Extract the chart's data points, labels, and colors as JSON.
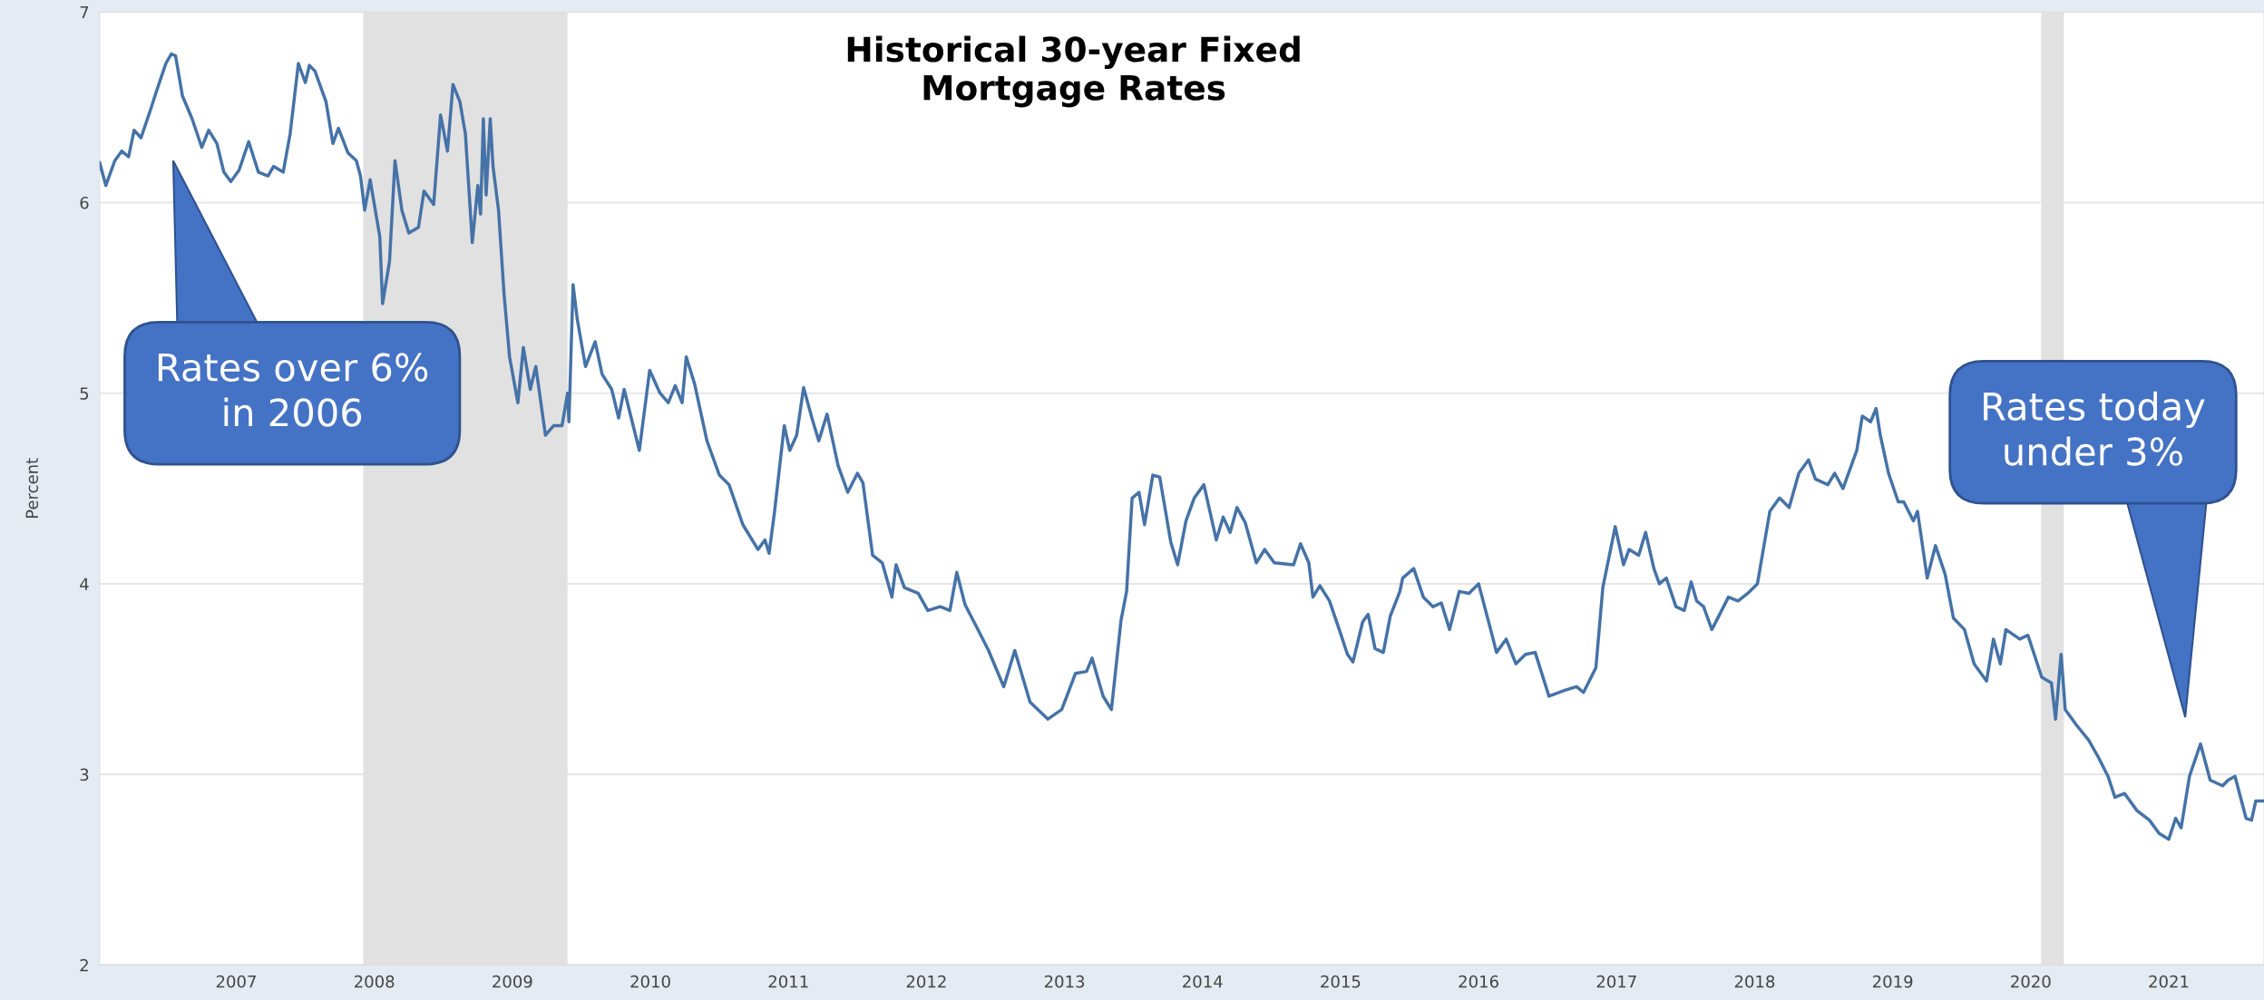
{
  "chart_data": {
    "type": "line",
    "title": "Historical 30-year Fixed\nMortgage Rates",
    "ylabel": "Percent",
    "x": [
      2006.01,
      2006.055,
      2006.12,
      2006.17,
      2006.22,
      2006.26,
      2006.31,
      2006.38,
      2006.42,
      2006.49,
      2006.53,
      2006.56,
      2006.61,
      2006.68,
      2006.75,
      2006.8,
      2006.86,
      2006.91,
      2006.96,
      2007.02,
      2007.09,
      2007.16,
      2007.23,
      2007.27,
      2007.34,
      2007.39,
      2007.45,
      2007.5,
      2007.53,
      2007.57,
      2007.65,
      2007.7,
      2007.74,
      2007.81,
      2007.87,
      2007.9,
      2007.93,
      2007.97,
      2008.04,
      2008.06,
      2008.11,
      2008.15,
      2008.2,
      2008.25,
      2008.32,
      2008.36,
      2008.43,
      2008.48,
      2008.53,
      2008.57,
      2008.62,
      2008.66,
      2008.71,
      2008.75,
      2008.77,
      2008.79,
      2008.81,
      2008.84,
      2008.86,
      2008.9,
      2008.94,
      2008.98,
      2009.04,
      2009.08,
      2009.13,
      2009.17,
      2009.24,
      2009.3,
      2009.36,
      2009.4,
      2009.41,
      2009.44,
      2009.47,
      2009.53,
      2009.6,
      2009.65,
      2009.72,
      2009.77,
      2009.81,
      2009.92,
      2009.995,
      2010.07,
      2010.13,
      2010.18,
      2010.23,
      2010.26,
      2010.32,
      2010.41,
      2010.5,
      2010.57,
      2010.67,
      2010.78,
      2010.83,
      2010.86,
      2010.9,
      2010.97,
      2011.01,
      2011.06,
      2011.11,
      2011.17,
      2011.22,
      2011.28,
      2011.36,
      2011.43,
      2011.5,
      2011.54,
      2011.61,
      2011.68,
      2011.75,
      2011.78,
      2011.84,
      2011.94,
      2012.01,
      2012.1,
      2012.17,
      2012.22,
      2012.28,
      2012.38,
      2012.45,
      2012.56,
      2012.64,
      2012.75,
      2012.88,
      2012.98,
      2013.08,
      2013.16,
      2013.2,
      2013.28,
      2013.34,
      2013.41,
      2013.45,
      2013.49,
      2013.54,
      2013.58,
      2013.64,
      2013.69,
      2013.77,
      2013.82,
      2013.88,
      2013.94,
      2014.01,
      2014.1,
      2014.15,
      2014.2,
      2014.25,
      2014.31,
      2014.39,
      2014.45,
      2014.52,
      2014.66,
      2014.71,
      2014.77,
      2014.8,
      2014.85,
      2014.92,
      2015.0,
      2015.05,
      2015.09,
      2015.16,
      2015.2,
      2015.25,
      2015.31,
      2015.36,
      2015.43,
      2015.45,
      2015.53,
      2015.6,
      2015.67,
      2015.73,
      2015.79,
      2015.86,
      2015.93,
      2016.0,
      2016.08,
      2016.13,
      2016.2,
      2016.27,
      2016.34,
      2016.41,
      2016.51,
      2016.62,
      2016.71,
      2016.76,
      2016.85,
      2016.9,
      2016.99,
      2017.05,
      2017.09,
      2017.16,
      2017.21,
      2017.27,
      2017.31,
      2017.36,
      2017.43,
      2017.49,
      2017.54,
      2017.58,
      2017.63,
      2017.69,
      2017.74,
      2017.81,
      2017.88,
      2017.95,
      2018.02,
      2018.11,
      2018.18,
      2018.25,
      2018.32,
      2018.39,
      2018.44,
      2018.53,
      2018.58,
      2018.64,
      2018.74,
      2018.78,
      2018.84,
      2018.88,
      2018.91,
      2018.97,
      2019.04,
      2019.08,
      2019.15,
      2019.18,
      2019.25,
      2019.31,
      2019.38,
      2019.44,
      2019.52,
      2019.59,
      2019.68,
      2019.73,
      2019.78,
      2019.82,
      2019.92,
      2019.98,
      2020.08,
      2020.15,
      2020.18,
      2020.22,
      2020.25,
      2020.33,
      2020.42,
      2020.49,
      2020.56,
      2020.61,
      2020.68,
      2020.77,
      2020.86,
      2020.93,
      2021.0,
      2021.05,
      2021.09,
      2021.15,
      2021.23,
      2021.3,
      2021.39,
      2021.43,
      2021.48,
      2021.56,
      2021.6,
      2021.63,
      2021.69
    ],
    "series": [
      {
        "color": "#4572a7",
        "values": [
          6.21,
          6.09,
          6.22,
          6.27,
          6.24,
          6.38,
          6.34,
          6.49,
          6.58,
          6.73,
          6.78,
          6.77,
          6.56,
          6.44,
          6.29,
          6.38,
          6.31,
          6.16,
          6.11,
          6.17,
          6.32,
          6.16,
          6.14,
          6.19,
          6.16,
          6.36,
          6.73,
          6.63,
          6.72,
          6.69,
          6.53,
          6.31,
          6.39,
          6.26,
          6.22,
          6.14,
          5.96,
          6.12,
          5.82,
          5.47,
          5.69,
          6.22,
          5.96,
          5.84,
          5.87,
          6.06,
          5.99,
          6.46,
          6.27,
          6.62,
          6.53,
          6.36,
          5.79,
          6.09,
          5.94,
          6.44,
          6.04,
          6.44,
          6.19,
          5.96,
          5.52,
          5.19,
          4.95,
          5.24,
          5.02,
          5.14,
          4.78,
          4.83,
          4.83,
          5.0,
          4.85,
          5.57,
          5.39,
          5.14,
          5.27,
          5.1,
          5.02,
          4.87,
          5.02,
          4.7,
          5.12,
          5.0,
          4.95,
          5.04,
          4.95,
          5.19,
          5.05,
          4.75,
          4.57,
          4.52,
          4.31,
          4.18,
          4.23,
          4.16,
          4.38,
          4.83,
          4.7,
          4.78,
          5.03,
          4.87,
          4.75,
          4.89,
          4.62,
          4.48,
          4.58,
          4.53,
          4.15,
          4.11,
          3.93,
          4.1,
          3.98,
          3.95,
          3.86,
          3.88,
          3.86,
          4.06,
          3.89,
          3.75,
          3.65,
          3.46,
          3.65,
          3.38,
          3.29,
          3.34,
          3.53,
          3.54,
          3.61,
          3.41,
          3.34,
          3.81,
          3.96,
          4.45,
          4.48,
          4.31,
          4.57,
          4.56,
          4.22,
          4.1,
          4.33,
          4.45,
          4.52,
          4.23,
          4.35,
          4.27,
          4.4,
          4.32,
          4.11,
          4.18,
          4.11,
          4.1,
          4.21,
          4.11,
          3.93,
          3.99,
          3.91,
          3.74,
          3.63,
          3.59,
          3.8,
          3.84,
          3.66,
          3.64,
          3.83,
          3.96,
          4.03,
          4.08,
          3.93,
          3.88,
          3.9,
          3.76,
          3.96,
          3.95,
          4.0,
          3.78,
          3.64,
          3.71,
          3.58,
          3.63,
          3.64,
          3.41,
          3.44,
          3.46,
          3.43,
          3.56,
          3.98,
          4.3,
          4.1,
          4.18,
          4.15,
          4.27,
          4.08,
          4.0,
          4.03,
          3.88,
          3.86,
          4.01,
          3.91,
          3.88,
          3.76,
          3.83,
          3.93,
          3.91,
          3.95,
          4.0,
          4.38,
          4.45,
          4.4,
          4.58,
          4.65,
          4.55,
          4.52,
          4.58,
          4.5,
          4.7,
          4.88,
          4.85,
          4.92,
          4.78,
          4.58,
          4.43,
          4.43,
          4.33,
          4.38,
          4.03,
          4.2,
          4.05,
          3.82,
          3.76,
          3.58,
          3.49,
          3.71,
          3.58,
          3.76,
          3.71,
          3.73,
          3.51,
          3.48,
          3.29,
          3.63,
          3.34,
          3.26,
          3.18,
          3.09,
          2.99,
          2.88,
          2.9,
          2.81,
          2.76,
          2.69,
          2.66,
          2.77,
          2.72,
          2.99,
          3.16,
          2.97,
          2.94,
          2.97,
          2.99,
          2.77,
          2.76,
          2.86,
          2.86
        ]
      }
    ],
    "xlim": [
      2006.01,
      2021.69
    ],
    "xticks": [
      2007,
      2008,
      2009,
      2010,
      2011,
      2012,
      2013,
      2014,
      2015,
      2016,
      2017,
      2018,
      2019,
      2020,
      2021
    ],
    "ylim": [
      2,
      7
    ],
    "yticks": [
      2,
      3,
      4,
      5,
      6,
      7
    ],
    "grid": "y",
    "legend": false,
    "line_style": "solid",
    "bands": [
      {
        "axis": "x",
        "from": 2007.92,
        "to": 2009.4,
        "color": "#e1e1e1"
      },
      {
        "axis": "x",
        "from": 2020.075,
        "to": 2020.24,
        "color": "#e1e1e1"
      }
    ],
    "annotations": [
      "Rates over 6%\nin 2006",
      "Rates today\nunder 3%"
    ]
  }
}
